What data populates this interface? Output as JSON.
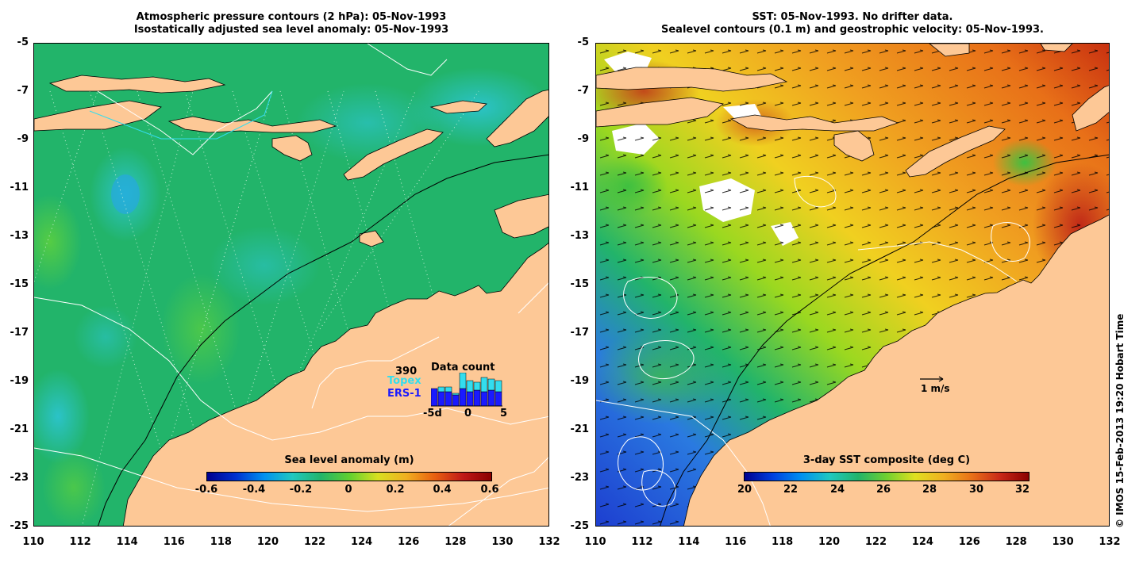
{
  "left_panel": {
    "title_line1": "Atmospheric pressure contours (2 hPa): 05-Nov-1993",
    "title_line2": "Isostatically adjusted sea level anomaly: 05-Nov-1993",
    "colorbar": {
      "title": "Sea level anomaly (m)",
      "ticks": [
        "-0.6",
        "-0.4",
        "-0.2",
        "0",
        "0.2",
        "0.4",
        "0.6"
      ]
    },
    "data_count": {
      "title": "Data count",
      "count": "390",
      "topex_label": "Topex",
      "ers_label": "ERS-1",
      "x_ticks": [
        "-5d",
        "0",
        "5"
      ],
      "topex_color": "#33ddee",
      "ers_color": "#1a1aff"
    }
  },
  "right_panel": {
    "title_line1": "SST: 05-Nov-1993. No drifter data.",
    "title_line2": "Sealevel contours (0.1 m) and geostrophic velocity: 05-Nov-1993.",
    "colorbar": {
      "title": "3-day SST composite (deg C)",
      "ticks": [
        "20",
        "22",
        "24",
        "26",
        "28",
        "30",
        "32"
      ]
    },
    "velocity_scale": "1 m/s"
  },
  "axes": {
    "y_ticks": [
      "-5",
      "-7",
      "-9",
      "-11",
      "-13",
      "-15",
      "-17",
      "-19",
      "-21",
      "-23",
      "-25"
    ],
    "x_ticks": [
      "110",
      "112",
      "114",
      "116",
      "118",
      "120",
      "122",
      "124",
      "126",
      "128",
      "130",
      "132"
    ]
  },
  "credit": "© IMOS 15-Feb-2013 19:20 Hobart Time",
  "colors": {
    "land": "#fdc896",
    "sea_left": "#22b46a",
    "sst_warm": "#f0a020",
    "sst_cool": "#1d50d8"
  }
}
